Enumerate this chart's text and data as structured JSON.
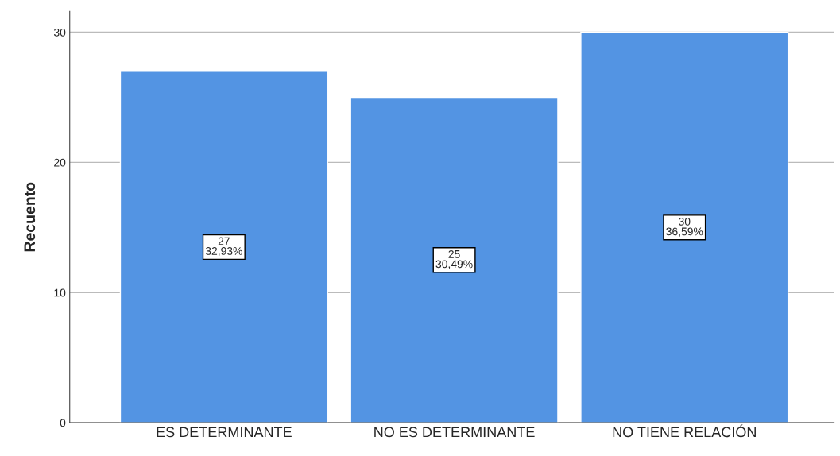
{
  "chart_data": {
    "type": "bar",
    "ylabel": "Recuento",
    "categories": [
      "ES DETERMINANTE",
      "NO ES DETERMINANTE",
      "NO TIENE RELACIÓN"
    ],
    "values": [
      27,
      25,
      30
    ],
    "value_labels": [
      "27\n32,93%",
      "25\n30,49%",
      "30\n36,59%"
    ],
    "color": "#5394e3",
    "ylim": [
      0,
      31.6
    ],
    "yticks": [
      0,
      10,
      20,
      30
    ],
    "grid": "y",
    "legend": false
  }
}
